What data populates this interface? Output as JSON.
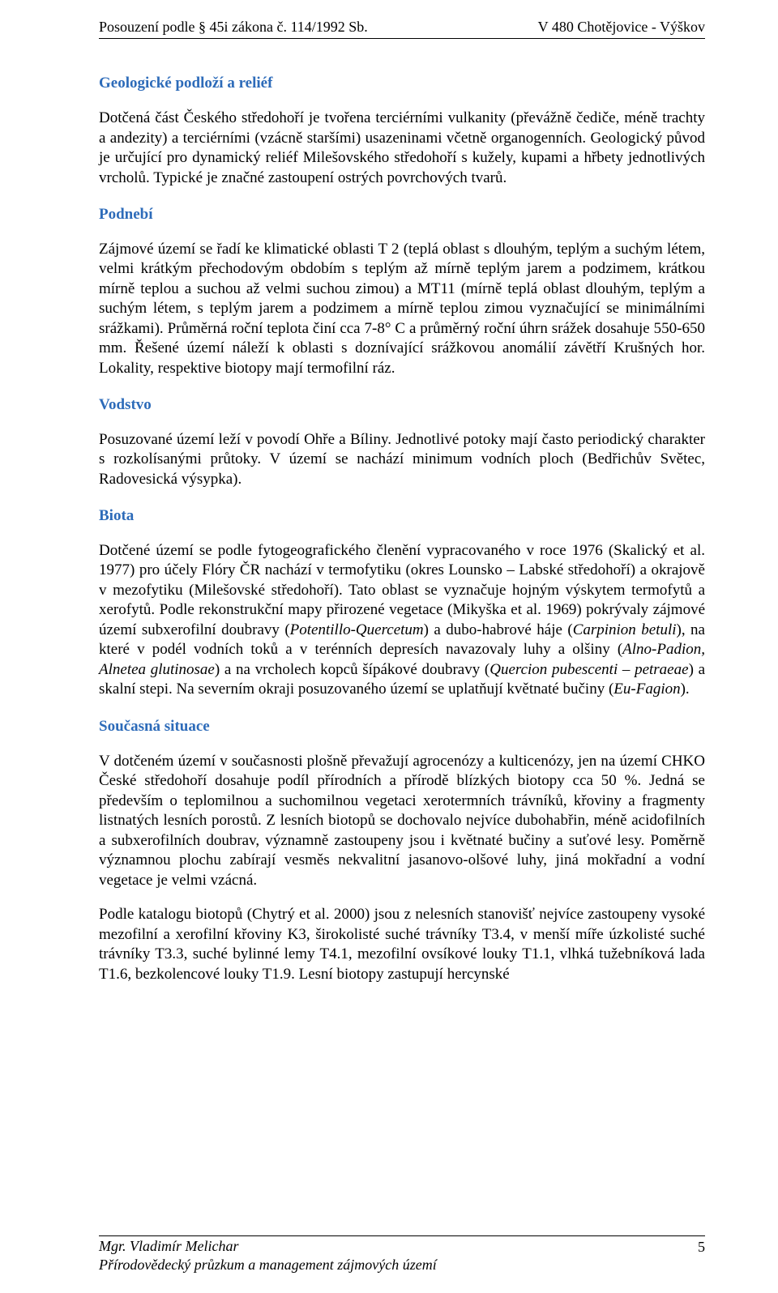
{
  "header": {
    "left": "Posouzení podle § 45i zákona č. 114/1992 Sb.",
    "right": "V 480 Chotějovice - Výškov"
  },
  "sections": [
    {
      "title": "Geologické podloží a reliéf",
      "paragraphs": [
        "Dotčená část Českého středohoří je tvořena terciérními vulkanity (převážně čediče, méně trachty a andezity) a terciérními (vzácně staršími) usazeninami včetně organogenních. Geologický původ je určující pro dynamický reliéf Milešovského středohoří s kužely, kupami a hřbety jednotlivých vrcholů. Typické je značné zastoupení ostrých povrchových tvarů."
      ]
    },
    {
      "title": "Podnebí",
      "paragraphs": [
        "Zájmové území se řadí ke klimatické oblasti T 2 (teplá oblast s dlouhým, teplým a suchým létem, velmi krátkým přechodovým obdobím s teplým až mírně teplým jarem a podzimem, krátkou mírně teplou a suchou až velmi suchou zimou) a MT11 (mírně teplá oblast dlouhým, teplým a suchým létem, s teplým jarem a podzimem a mírně teplou zimou vyznačující se minimálními srážkami). Průměrná roční teplota činí cca 7-8° C a průměrný roční úhrn srážek dosahuje 550-650 mm. Řešené území náleží k oblasti s doznívající srážkovou anomálií závětří Krušných hor. Lokality, respektive biotopy mají termofilní ráz."
      ]
    },
    {
      "title": "Vodstvo",
      "paragraphs": [
        "Posuzované území leží v povodí Ohře a Bíliny. Jednotlivé potoky mají často periodický charakter s rozkolísanými průtoky. V území se nachází minimum vodních ploch (Bedřichův Světec, Radovesická výsypka)."
      ]
    },
    {
      "title": "Biota",
      "paragraphs": [
        "Dotčené území se podle fytogeografického členění vypracovaného v roce 1976 (Skalický et al. 1977) pro účely Flóry ČR nachází v termofytiku (okres Lounsko – Labské středohoří) a okrajově v mezofytiku (Milešovské středohoří). Tato oblast se vyznačuje hojným výskytem termofytů a xerofytů. Podle rekonstrukční mapy přirozené vegetace (Mikyška et al. 1969) pokrývaly zájmové území subxerofilní doubravy (<span class=\"italic\">Potentillo-Quercetum</span>) a dubo-habrové háje (<span class=\"italic\">Carpinion betuli</span>), na které v podél vodních toků a v terénních depresích navazovaly luhy a olšiny (<span class=\"italic\">Alno-Padion, Alnetea glutinosae</span>) a na vrcholech kopců šípákové doubravy (<span class=\"italic\">Quercion pubescenti – petraeae</span>) a skalní stepi. Na severním okraji posuzovaného území se uplatňují květnaté bučiny (<span class=\"italic\">Eu-Fagion</span>)."
      ]
    },
    {
      "title": "Současná situace",
      "paragraphs": [
        "V dotčeném území v současnosti plošně  převažují agrocenózy a kulticenózy, jen na území CHKO České středohoří dosahuje podíl přírodních a přírodě blízkých biotopy cca 50 %. Jedná se především o teplomilnou a suchomilnou vegetaci xerotermních trávníků, křoviny a fragmenty listnatých lesních porostů. Z lesních biotopů se dochovalo nejvíce dubohabřin, méně acidofilních a subxerofilních doubrav, významně zastoupeny jsou i květnaté bučiny a suťové lesy. Poměrně významnou plochu zabírají vesměs nekvalitní jasanovo-olšové luhy, jiná mokřadní a vodní vegetace je velmi vzácná.",
        "Podle katalogu biotopů (Chytrý et al. 2000) jsou z nelesních stanovišť nejvíce zastoupeny vysoké mezofilní a xerofilní  křoviny K3, širokolisté suché  trávníky T3.4, v menší míře úzkolisté suché trávníky T3.3, suché bylinné lemy T4.1, mezofilní ovsíkové louky T1.1, vlhká tužebníková lada T1.6, bezkolencové louky T1.9. Lesní biotopy zastupují hercynské"
      ]
    }
  ],
  "footer": {
    "line1": "Mgr. Vladimír Melichar",
    "line2": "Přírodovědecký průzkum a management zájmových území",
    "page": "5"
  },
  "colors": {
    "heading": "#2d6bb9",
    "text": "#000000",
    "background": "#ffffff"
  }
}
